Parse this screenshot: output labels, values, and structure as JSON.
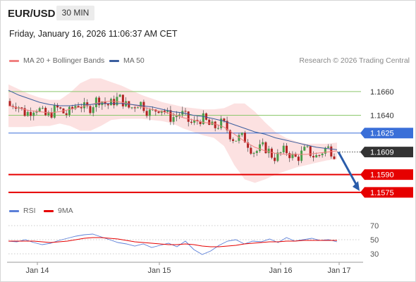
{
  "header": {
    "symbol": "EUR/USD",
    "timeframe": "30 MIN",
    "datetime": "Friday, January 16, 2026 11:06:37 AM CET"
  },
  "price_legend": {
    "ma20_label": "MA 20 + Bollinger Bands",
    "ma50_label": "MA 50",
    "credit": "Research © 2026 Trading Central"
  },
  "rsi_legend": {
    "rsi_label": "RSI",
    "ma9_label": "9MA"
  },
  "colors": {
    "ma20": "#f08080",
    "ma50": "#3b5e9e",
    "bollinger_fill": "#fbdcdc",
    "candle_up": "#4a9e4a",
    "candle_down": "#b22222",
    "resistance": "#8cc86c",
    "pivot_blue": "#3a6fd8",
    "support_red": "#e60000",
    "current_price_bg": "#333333",
    "rsi_line": "#5b7fd8",
    "rsi_ma": "#e60000",
    "arrow": "#2a5caa"
  },
  "chart_data": [
    {
      "type": "line",
      "title": "",
      "x_ticks": [
        "Jan 14",
        "Jan 15",
        "Jan 16",
        "Jan 17"
      ],
      "ylim": [
        1.1569,
        1.167
      ],
      "levels": [
        {
          "value": 1.166,
          "label": "1.1660",
          "kind": "resistance"
        },
        {
          "value": 1.164,
          "label": "1.1640",
          "kind": "resistance"
        },
        {
          "value": 1.1625,
          "label": "1.1625",
          "kind": "pivot"
        },
        {
          "value": 1.1609,
          "label": "1.1609",
          "kind": "current"
        },
        {
          "value": 1.159,
          "label": "1.1590",
          "kind": "support"
        },
        {
          "value": 1.1575,
          "label": "1.1575",
          "kind": "support"
        }
      ],
      "projection": {
        "from": 1.1609,
        "to": 1.1575
      },
      "series": [
        {
          "name": "MA 20 + Bollinger Bands",
          "values": [
            1.1648,
            1.1646,
            1.1644,
            1.1643,
            1.1642,
            1.1643,
            1.1645,
            1.1647,
            1.1649,
            1.1651,
            1.1652,
            1.1651,
            1.1649,
            1.1647,
            1.1645,
            1.1643,
            1.1641,
            1.1638,
            1.1636,
            1.1634,
            1.1633,
            1.163,
            1.1624,
            1.1618,
            1.1613,
            1.161,
            1.1608,
            1.1607,
            1.1607,
            1.1607,
            1.1608,
            1.1609,
            1.161
          ]
        },
        {
          "name": "MA 50",
          "values": [
            1.1661,
            1.1657,
            1.1654,
            1.1651,
            1.1649,
            1.1648,
            1.1648,
            1.1649,
            1.1649,
            1.165,
            1.165,
            1.165,
            1.1649,
            1.1648,
            1.1647,
            1.1645,
            1.1643,
            1.1642,
            1.164,
            1.1639,
            1.1637,
            1.1635,
            1.1632,
            1.1629,
            1.1626,
            1.1624,
            1.1621,
            1.1619,
            1.1617,
            1.1615,
            1.1613,
            1.1612,
            1.1611
          ]
        }
      ]
    },
    {
      "type": "line",
      "title": "",
      "ylim": [
        20,
        80
      ],
      "y_ticks": [
        70,
        50,
        30
      ],
      "series": [
        {
          "name": "RSI",
          "values": [
            48,
            47,
            50,
            46,
            43,
            45,
            49,
            52,
            55,
            57,
            58,
            54,
            50,
            46,
            44,
            41,
            44,
            39,
            42,
            45,
            40,
            48,
            36,
            29,
            34,
            42,
            48,
            50,
            44,
            48,
            47,
            51,
            46,
            53,
            48,
            50,
            52,
            49,
            50,
            47
          ]
        },
        {
          "name": "9MA",
          "values": [
            48,
            48,
            48,
            48,
            47,
            46,
            47,
            48,
            50,
            52,
            53,
            53,
            52,
            51,
            49,
            47,
            46,
            45,
            44,
            43,
            43,
            44,
            43,
            41,
            40,
            40,
            41,
            42,
            44,
            45,
            46,
            47,
            47,
            48,
            48,
            49,
            49,
            49,
            49,
            49
          ]
        }
      ]
    }
  ]
}
